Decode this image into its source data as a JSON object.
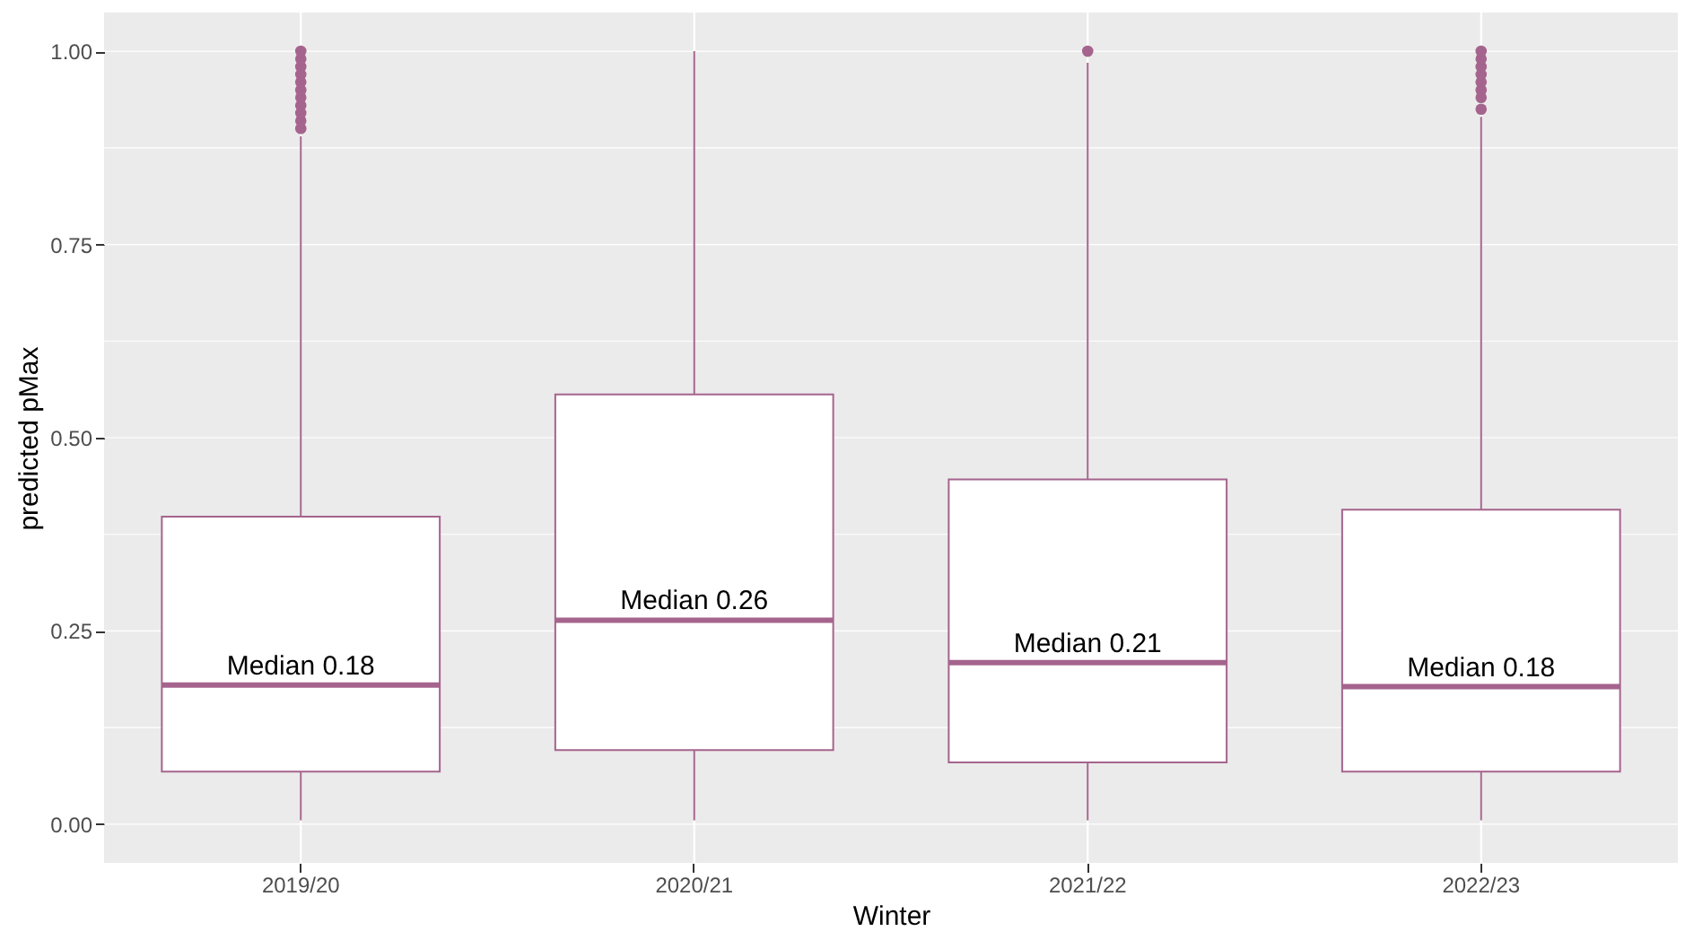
{
  "chart_data": {
    "type": "box",
    "xlabel": "Winter",
    "ylabel": "predicted pMax",
    "categories": [
      "2019/20",
      "2020/21",
      "2021/22",
      "2022/23"
    ],
    "boxes": [
      {
        "low": 0.005,
        "q1": 0.068,
        "median": 0.18,
        "q3": 0.398,
        "high": 0.89,
        "outliers": [
          0.9,
          0.91,
          0.92,
          0.93,
          0.94,
          0.95,
          0.96,
          0.97,
          0.98,
          0.99,
          1.0
        ]
      },
      {
        "low": 0.005,
        "q1": 0.096,
        "median": 0.264,
        "q3": 0.556,
        "high": 1.0
      },
      {
        "low": 0.005,
        "q1": 0.08,
        "median": 0.209,
        "q3": 0.446,
        "high": 0.985,
        "outliers": [
          1.0
        ]
      },
      {
        "low": 0.005,
        "q1": 0.068,
        "median": 0.178,
        "q3": 0.407,
        "high": 0.915,
        "outliers": [
          0.925,
          0.94,
          0.95,
          0.96,
          0.97,
          0.98,
          0.99,
          1.0
        ]
      }
    ],
    "color": "#a5648d",
    "ylim": [
      -0.05,
      1.05
    ],
    "yticks": [
      {
        "value": 0,
        "label": "0.00"
      },
      {
        "value": 0.125,
        "label": null
      },
      {
        "value": 0.25,
        "label": "0.25"
      },
      {
        "value": 0.375,
        "label": null
      },
      {
        "value": 0.5,
        "label": "0.50"
      },
      {
        "value": 0.625,
        "label": null
      },
      {
        "value": 0.75,
        "label": "0.75"
      },
      {
        "value": 0.875,
        "label": null
      },
      {
        "value": 1.0,
        "label": "1.00"
      }
    ],
    "grid": true,
    "annotations": [
      {
        "text": "Median 0.18",
        "x": "2019/20",
        "y": 0.18
      },
      {
        "text": "Median 0.26",
        "x": "2020/21",
        "y": 0.264
      },
      {
        "text": "Median 0.21",
        "x": "2021/22",
        "y": 0.209
      },
      {
        "text": "Median 0.18",
        "x": "2022/23",
        "y": 0.178
      }
    ]
  }
}
